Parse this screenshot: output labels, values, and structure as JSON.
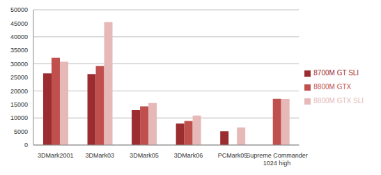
{
  "chart_data": {
    "type": "bar",
    "categories": [
      "3DMark2001",
      "3DMark03",
      "3DMark05",
      "3DMark06",
      "PCMark05",
      "Supreme Commander 1024 high"
    ],
    "series": [
      {
        "name": "8700M GT SLI",
        "color": "#9b2d30",
        "values": [
          26500,
          26200,
          12900,
          7900,
          5100,
          null
        ]
      },
      {
        "name": "8800M GTX",
        "color": "#c0504d",
        "values": [
          32300,
          29200,
          14300,
          8900,
          null,
          17100
        ]
      },
      {
        "name": "8800M GTX SLI",
        "color": "#e6b9b8",
        "values": [
          30800,
          45400,
          15500,
          10900,
          6500,
          17000
        ]
      }
    ],
    "ylim": [
      0,
      50000
    ],
    "yticks": [
      0,
      5000,
      10000,
      15000,
      20000,
      25000,
      30000,
      35000,
      40000,
      45000,
      50000
    ],
    "grid": true,
    "legend": "right"
  }
}
